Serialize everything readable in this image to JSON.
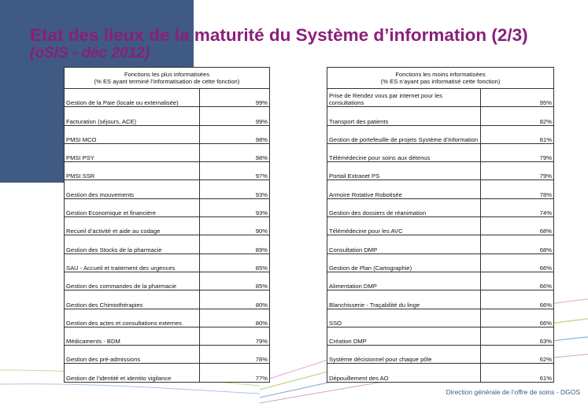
{
  "slide": {
    "title": "Etat des lieux de la maturité du Système d’information (2/3)",
    "subtitle": "(oSIS - déc 2012)",
    "footer": "Direction générale de l’offre de soins - DGOS",
    "colors": {
      "title": "#8a1f7a",
      "corner_block": "#3f5a83"
    }
  },
  "left_table": {
    "header_line1": "Fonctions les plus informatisées",
    "header_line2": "(% ES ayant terminé l’informatisation de cette fonction)",
    "rows": [
      {
        "name": "Gestion de la Paie (locale ou externalisée)",
        "value": "99%"
      },
      {
        "name": "Facturation (séjours, ACE)",
        "value": "99%"
      },
      {
        "name": "PMSI MCO",
        "value": "98%"
      },
      {
        "name": "PMSI PSY",
        "value": "98%"
      },
      {
        "name": "PMSI SSR",
        "value": "97%"
      },
      {
        "name": "Gestion des mouvements",
        "value": "93%"
      },
      {
        "name": "Gestion Economique et financière",
        "value": "93%"
      },
      {
        "name": "Recueil d’activité et aide au codage",
        "value": "90%"
      },
      {
        "name": "Gestion des Stocks de la pharmacie",
        "value": "89%"
      },
      {
        "name": "SAU - Accueil et traitement des urgences",
        "value": "85%"
      },
      {
        "name": "Gestion des commandes de la pharmacie",
        "value": "85%"
      },
      {
        "name": "Gestion des Chimiothérapies",
        "value": "80%"
      },
      {
        "name": "Gestion des actes et consultations externes",
        "value": "80%"
      },
      {
        "name": "Médicaments - BDM",
        "value": "79%"
      },
      {
        "name": "Gestion des pré-admissions",
        "value": "78%"
      },
      {
        "name": "Gestion de l’identité et identito vigilance",
        "value": "77%"
      }
    ]
  },
  "right_table": {
    "header_line1": "Fonctions les moins informatisées",
    "header_line2": "(% ES  n’ayant pas informatisé cette fonction)",
    "rows": [
      {
        "name": "Prise de Rendez vous par internet pour les consultations",
        "value": "95%"
      },
      {
        "name": "Transport des patients",
        "value": "82%"
      },
      {
        "name": "Gestion de portefeuille de projets Système d’Information",
        "value": "81%"
      },
      {
        "name": "Télémédecine  pour soins aux détenus",
        "value": "79%"
      },
      {
        "name": "Portail Extranet PS",
        "value": "79%"
      },
      {
        "name": "Armoire Rotative Robotisée",
        "value": "78%"
      },
      {
        "name": "Gestion des dossiers de réanimation",
        "value": "74%"
      },
      {
        "name": "Télémédecine  pour les AVC",
        "value": "68%"
      },
      {
        "name": "Consultation DMP",
        "value": "68%"
      },
      {
        "name": "Gestion de Plan (Cartographie)",
        "value": "66%"
      },
      {
        "name": "Alimentation DMP",
        "value": "66%"
      },
      {
        "name": "Blanchisserie - Traçabilité du linge",
        "value": "66%"
      },
      {
        "name": "SSO",
        "value": "66%"
      },
      {
        "name": "Création DMP",
        "value": "63%"
      },
      {
        "name": "Système  décisionnel pour chaque pôle",
        "value": "62%"
      },
      {
        "name": "Dépouillement des AO",
        "value": "61%"
      }
    ]
  }
}
